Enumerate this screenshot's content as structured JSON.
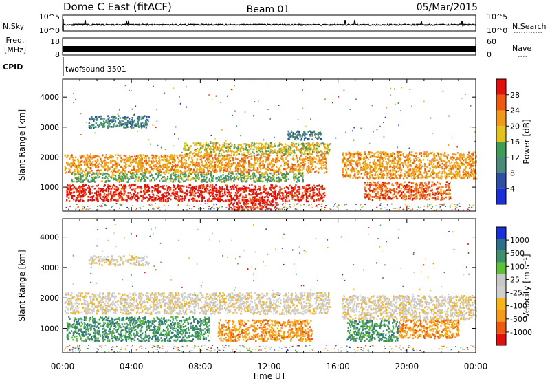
{
  "header": {
    "station": "Dome C East (fitACF)",
    "beam": "Beam 01",
    "date": "05/Mar/2015"
  },
  "nsky_panel": {
    "left_label": "N.Sky",
    "right_label": "N.Search",
    "left_ticks": [
      "10^5",
      "10^0"
    ],
    "right_ticks": [
      "10^5",
      "10^0"
    ]
  },
  "freq_panel": {
    "left_label_line1": "Freq.",
    "left_label_line2": "[MHz]",
    "right_label": "Nave",
    "left_ticks": [
      "18",
      "8"
    ],
    "right_ticks": [
      "60",
      "0"
    ]
  },
  "cpid_panel": {
    "label": "CPID",
    "program": "twofsound 3501"
  },
  "colors": {
    "power_scale": [
      "#1a2fd6",
      "#2e4fa3",
      "#4a8a7a",
      "#3f9b55",
      "#e3c21e",
      "#f09a1d",
      "#ec5a12",
      "#e0100e"
    ],
    "velocity_scale": [
      "#e0100e",
      "#ec5a12",
      "#f59a1a",
      "#f4b41a",
      "#cfcfcf",
      "#c8c8c8",
      "#5fbf3a",
      "#3f8f6a",
      "#2d6e8a",
      "#1a2fd6"
    ]
  },
  "chart_data": [
    {
      "type": "heatmap",
      "name": "Power",
      "ylabel": "Slant Range [km]",
      "xlabel": "",
      "x_ticks": [
        "00:00",
        "04:00",
        "08:00",
        "12:00",
        "16:00",
        "20:00",
        "00:00"
      ],
      "y_ticks": [
        1000,
        2000,
        3000,
        4000
      ],
      "ylim": [
        200,
        4600
      ],
      "colorbar": {
        "label": "Power [dB]",
        "ticks": [
          "4",
          "8",
          "12",
          "16",
          "20",
          "24",
          "28"
        ]
      },
      "bands": [
        {
          "range_km": [
            3000,
            3400
          ],
          "hours": [
            1.5,
            5.0
          ],
          "level": 2
        },
        {
          "range_km": [
            2100,
            2500
          ],
          "hours": [
            7.0,
            15.5
          ],
          "level": 4
        },
        {
          "range_km": [
            1500,
            2100
          ],
          "hours": [
            0.1,
            15.3
          ],
          "level": 5
        },
        {
          "range_km": [
            1200,
            1500
          ],
          "hours": [
            0.5,
            14.0
          ],
          "level": 3
        },
        {
          "range_km": [
            550,
            1100
          ],
          "hours": [
            0.2,
            15.2
          ],
          "level": 7
        },
        {
          "range_km": [
            250,
            600
          ],
          "hours": [
            9.5,
            12.5
          ],
          "level": 7
        },
        {
          "range_km": [
            1300,
            2200
          ],
          "hours": [
            16.2,
            24.0
          ],
          "level": 5
        },
        {
          "range_km": [
            600,
            1200
          ],
          "hours": [
            17.5,
            22.5
          ],
          "level": 6
        },
        {
          "range_km": [
            2600,
            2900
          ],
          "hours": [
            13.0,
            15.0
          ],
          "level": 2
        }
      ]
    },
    {
      "type": "heatmap",
      "name": "Velocity",
      "ylabel": "Slant Range [km]",
      "xlabel": "Time UT",
      "x_ticks": [
        "00:00",
        "04:00",
        "08:00",
        "12:00",
        "16:00",
        "20:00",
        "00:00"
      ],
      "y_ticks": [
        1000,
        2000,
        3000,
        4000
      ],
      "ylim": [
        200,
        4600
      ],
      "colorbar": {
        "label": "Velocity [m s⁻¹]",
        "ticks": [
          "1000",
          "500",
          "100",
          "25",
          "-25",
          "-100",
          "-500",
          "-1000"
        ]
      },
      "bands": [
        {
          "range_km": [
            3100,
            3400
          ],
          "hours": [
            1.5,
            5.0
          ],
          "level": 4
        },
        {
          "range_km": [
            1500,
            2200
          ],
          "hours": [
            0.1,
            15.5
          ],
          "level": 4
        },
        {
          "range_km": [
            600,
            1400
          ],
          "hours": [
            0.2,
            8.5
          ],
          "level": 7
        },
        {
          "range_km": [
            600,
            1300
          ],
          "hours": [
            9.0,
            14.5
          ],
          "level": 2
        },
        {
          "range_km": [
            1300,
            2100
          ],
          "hours": [
            16.2,
            24.0
          ],
          "level": 4
        },
        {
          "range_km": [
            600,
            1300
          ],
          "hours": [
            16.5,
            19.5
          ],
          "level": 7
        },
        {
          "range_km": [
            700,
            1300
          ],
          "hours": [
            19.5,
            23.0
          ],
          "level": 2
        }
      ]
    }
  ]
}
